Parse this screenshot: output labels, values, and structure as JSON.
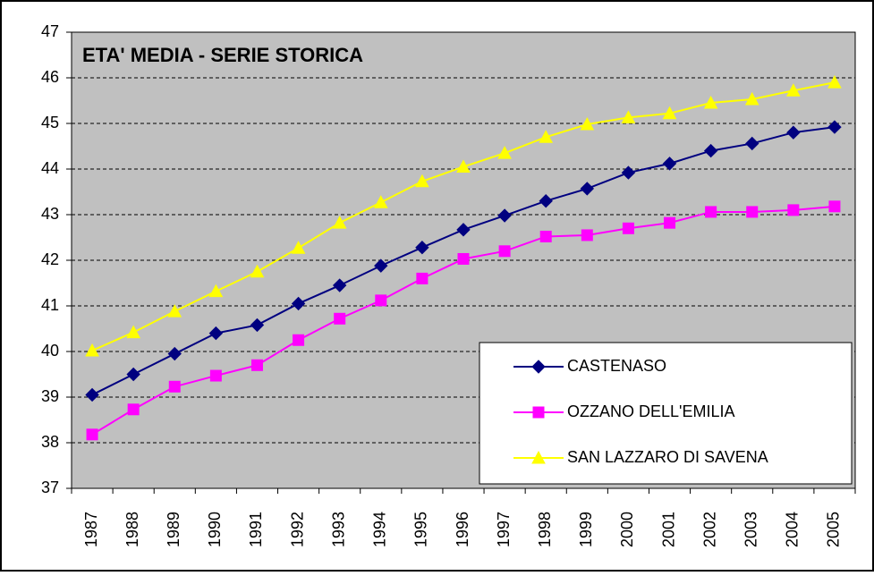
{
  "chart_data": {
    "type": "line",
    "title": "ETA' MEDIA - SERIE STORICA",
    "categories": [
      "1987",
      "1988",
      "1989",
      "1990",
      "1991",
      "1992",
      "1993",
      "1994",
      "1995",
      "1996",
      "1997",
      "1998",
      "1999",
      "2000",
      "2001",
      "2002",
      "2003",
      "2004",
      "2005"
    ],
    "series": [
      {
        "name": "CASTENASO",
        "color": "#000080",
        "marker": "diamond",
        "values": [
          39.05,
          39.5,
          39.95,
          40.4,
          40.58,
          41.05,
          41.45,
          41.88,
          42.28,
          42.67,
          42.98,
          43.3,
          43.57,
          43.92,
          44.12,
          44.4,
          44.56,
          44.8,
          44.92
        ]
      },
      {
        "name": "OZZANO DELL'EMILIA",
        "color": "#ff00ff",
        "marker": "square",
        "values": [
          38.18,
          38.73,
          39.23,
          39.47,
          39.7,
          40.25,
          40.72,
          41.12,
          41.6,
          42.03,
          42.2,
          42.52,
          42.55,
          42.7,
          42.82,
          43.06,
          43.06,
          43.1,
          43.18
        ]
      },
      {
        "name": "SAN LAZZARO DI SAVENA",
        "color": "#ffff00",
        "marker": "triangle",
        "values": [
          40.02,
          40.42,
          40.88,
          41.32,
          41.75,
          42.27,
          42.82,
          43.27,
          43.73,
          44.05,
          44.35,
          44.7,
          44.98,
          45.13,
          45.22,
          45.45,
          45.53,
          45.72,
          45.9
        ]
      }
    ],
    "ylim": [
      37,
      47
    ],
    "yticks": [
      37,
      38,
      39,
      40,
      41,
      42,
      43,
      44,
      45,
      46,
      47
    ],
    "grid": true,
    "background": "#c0c0c0",
    "legend": "lower right"
  }
}
